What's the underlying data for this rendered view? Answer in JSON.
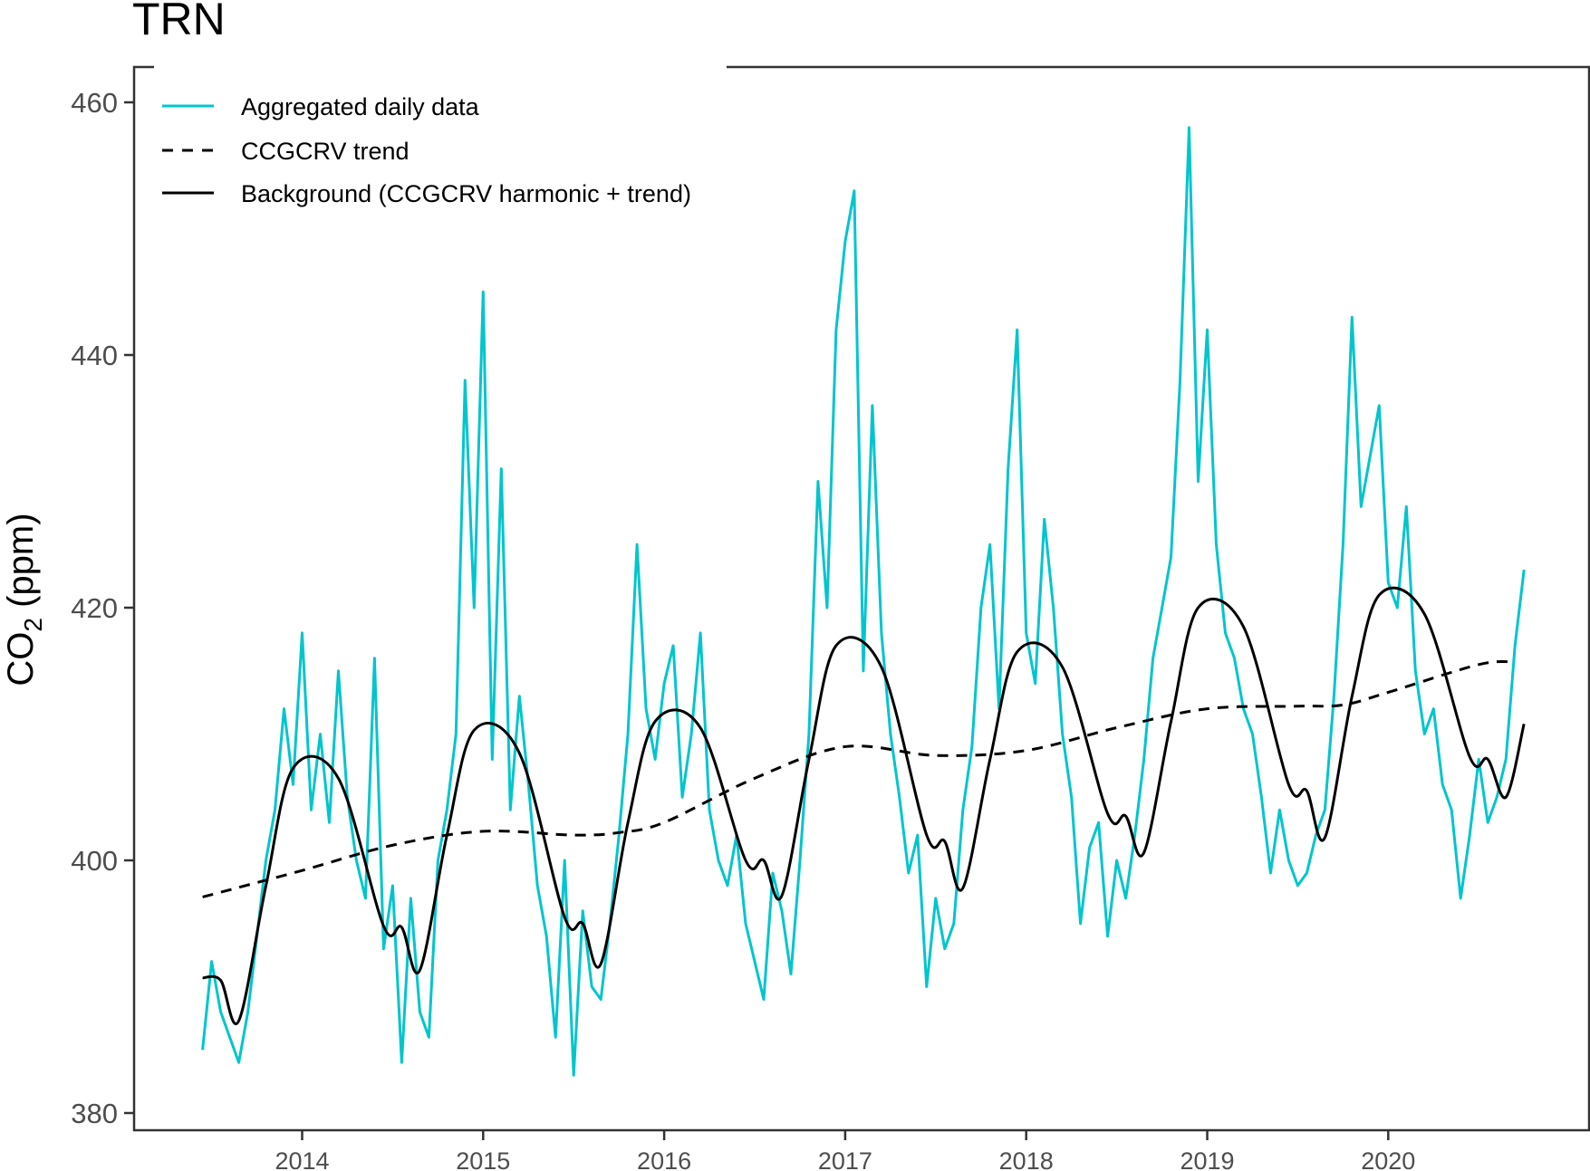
{
  "chart_data": {
    "type": "line",
    "title": "TRN",
    "ylabel_parts": [
      "CO",
      "2",
      " (ppm)"
    ],
    "xlabel": "",
    "xlim": [
      2013.1,
      2021.0
    ],
    "ylim": [
      378.5,
      465.2
    ],
    "x_ticks": [
      2014,
      2015,
      2016,
      2017,
      2018,
      2019,
      2020
    ],
    "x_tick_labels": [
      "2014",
      "2015",
      "2016",
      "2017",
      "2018",
      "2019",
      "2020"
    ],
    "y_ticks": [
      380,
      400,
      420,
      440,
      460
    ],
    "y_tick_labels": [
      "380",
      "400",
      "420",
      "440",
      "460"
    ],
    "grid": false,
    "legend_position": "top-left",
    "colors": {
      "aggregated": "#00C5CD",
      "trend": "#000000",
      "background": "#000000",
      "axis_text": "#4D4D4D"
    },
    "series": [
      {
        "name": "Aggregated daily data",
        "style": "solid-cyan",
        "x_start": 2013.45,
        "x_step": 0.05,
        "values": [
          385,
          392,
          388,
          386,
          384,
          388,
          394,
          400,
          404,
          412,
          406,
          418,
          404,
          410,
          403,
          415,
          405,
          400,
          397,
          416,
          393,
          398,
          384,
          397,
          388,
          386,
          400,
          404,
          410,
          438,
          420,
          445,
          408,
          431,
          404,
          413,
          406,
          398,
          394,
          386,
          400,
          383,
          396,
          390,
          389,
          395,
          402,
          410,
          425,
          412,
          408,
          414,
          417,
          405,
          410,
          418,
          404,
          400,
          398,
          402,
          395,
          392,
          389,
          399,
          396,
          391,
          400,
          410,
          430,
          420,
          442,
          449,
          453,
          415,
          436,
          418,
          410,
          405,
          399,
          402,
          390,
          397,
          393,
          395,
          404,
          409,
          420,
          425,
          412,
          431,
          442,
          418,
          414,
          427,
          420,
          410,
          405,
          395,
          401,
          403,
          394,
          400,
          397,
          402,
          408,
          416,
          420,
          424,
          438,
          458,
          430,
          442,
          425,
          418,
          416,
          412,
          410,
          405,
          399,
          404,
          400,
          398,
          399,
          402,
          404,
          413,
          425,
          443,
          428,
          432,
          436,
          422,
          420,
          428,
          415,
          410,
          412,
          406,
          404,
          397,
          402,
          408,
          403,
          405,
          408,
          417,
          423
        ]
      },
      {
        "name": "CCGCRV trend",
        "style": "dashed-black",
        "x": [
          2013.45,
          2014.0,
          2014.5,
          2015.0,
          2015.5,
          2015.75,
          2016.0,
          2016.5,
          2017.0,
          2017.5,
          2018.0,
          2018.5,
          2019.0,
          2019.5,
          2019.75,
          2020.0,
          2020.5,
          2020.7
        ],
        "values": [
          397.1,
          399.2,
          401.2,
          402.3,
          402.0,
          402.2,
          403.0,
          406.5,
          409.0,
          408.3,
          408.7,
          410.5,
          412.0,
          412.2,
          412.3,
          413.3,
          415.5,
          415.7
        ]
      },
      {
        "name": "Background (CCGCRV harmonic + trend)",
        "style": "solid-black",
        "x": [
          2013.45,
          2013.55,
          2013.65,
          2013.8,
          2013.95,
          2014.2,
          2014.45,
          2014.55,
          2014.65,
          2014.8,
          2014.95,
          2015.2,
          2015.45,
          2015.55,
          2015.65,
          2015.8,
          2015.95,
          2016.2,
          2016.45,
          2016.55,
          2016.65,
          2016.8,
          2016.95,
          2017.2,
          2017.45,
          2017.55,
          2017.65,
          2017.8,
          2017.95,
          2018.2,
          2018.45,
          2018.55,
          2018.65,
          2018.8,
          2018.95,
          2019.2,
          2019.45,
          2019.55,
          2019.65,
          2019.8,
          2019.95,
          2020.2,
          2020.45,
          2020.55,
          2020.65,
          2020.75
        ],
        "values": [
          390.7,
          390.5,
          387.3,
          398,
          407.3,
          406.5,
          394.8,
          394.7,
          391.3,
          402,
          410.3,
          408.5,
          395.5,
          395,
          391.8,
          403,
          411,
          410.5,
          400,
          400,
          397.2,
          408,
          417,
          415.3,
          402,
          401.5,
          397.8,
          408,
          416.5,
          415.3,
          403.7,
          403.5,
          400.6,
          411,
          420,
          418.5,
          406,
          405.5,
          401.8,
          413,
          421,
          419.5,
          408.2,
          408,
          405,
          410.8
        ]
      }
    ]
  }
}
